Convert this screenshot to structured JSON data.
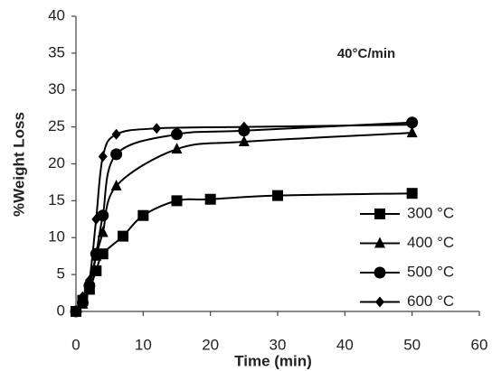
{
  "chart_data": {
    "type": "line",
    "annotation": "40°C/min",
    "x_label": "Time (min)",
    "y_label": "%Weight Loss",
    "xlim": [
      0,
      60
    ],
    "xticks": [
      0,
      10,
      20,
      30,
      40,
      50,
      60
    ],
    "ylim": [
      0,
      40
    ],
    "yticks": [
      0,
      5,
      10,
      15,
      20,
      25,
      30,
      35,
      40
    ],
    "grid": false,
    "legend": "lower right",
    "series": [
      {
        "name": "300 °C",
        "color": "#000000",
        "marker": "square",
        "x": [
          0,
          1,
          2,
          3,
          4,
          7,
          10,
          15,
          20,
          30,
          50
        ],
        "values": [
          0,
          1.5,
          3,
          5.5,
          7.8,
          10.2,
          13,
          15,
          15.2,
          15.7,
          16
        ]
      },
      {
        "name": "400 °C",
        "color": "#000000",
        "marker": "triangle",
        "x": [
          0,
          1,
          2,
          3,
          4,
          6,
          15,
          25,
          50
        ],
        "values": [
          0,
          1,
          3,
          7.5,
          10.7,
          17,
          22,
          23,
          24.2
        ]
      },
      {
        "name": "500 °C",
        "color": "#000000",
        "marker": "circle",
        "x": [
          0,
          1,
          2,
          3,
          4,
          6,
          15,
          25,
          50
        ],
        "values": [
          0,
          1.2,
          3.5,
          7.8,
          13,
          21.3,
          24,
          24.5,
          25.6
        ]
      },
      {
        "name": "600 °C",
        "color": "#000000",
        "marker": "diamond",
        "x": [
          0,
          1,
          2,
          3,
          4,
          6,
          12,
          25,
          50
        ],
        "values": [
          0,
          2,
          4.2,
          12.5,
          21,
          24,
          24.8,
          25,
          25.3
        ]
      }
    ]
  }
}
